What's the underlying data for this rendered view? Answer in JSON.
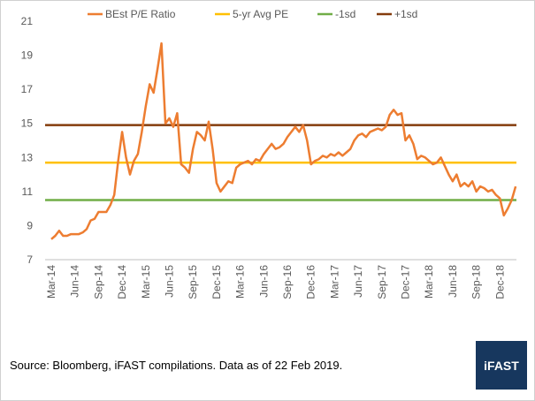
{
  "chart_data": {
    "type": "line",
    "categories": [
      "Mar-14",
      null,
      null,
      null,
      null,
      null,
      "Jun-14",
      null,
      null,
      null,
      null,
      null,
      "Sep-14",
      null,
      null,
      null,
      null,
      null,
      "Dec-14",
      null,
      null,
      null,
      null,
      null,
      "Mar-15",
      null,
      null,
      null,
      null,
      null,
      "Jun-15",
      null,
      null,
      null,
      null,
      null,
      "Sep-15",
      null,
      null,
      null,
      null,
      null,
      "Dec-15",
      null,
      null,
      null,
      null,
      null,
      "Mar-16",
      null,
      null,
      null,
      null,
      null,
      "Jun-16",
      null,
      null,
      null,
      null,
      null,
      "Sep-16",
      null,
      null,
      null,
      null,
      null,
      "Dec-16",
      null,
      null,
      null,
      null,
      null,
      "Mar-17",
      null,
      null,
      null,
      null,
      null,
      "Jun-17",
      null,
      null,
      null,
      null,
      null,
      "Sep-17",
      null,
      null,
      null,
      null,
      null,
      "Dec-17",
      null,
      null,
      null,
      null,
      null,
      "Mar-18",
      null,
      null,
      null,
      null,
      null,
      "Jun-18",
      null,
      null,
      null,
      null,
      null,
      "Sep-18",
      null,
      null,
      null,
      null,
      null,
      "Dec-18",
      null,
      null,
      null,
      null
    ],
    "series": [
      {
        "name": "BEst P/E Ratio",
        "color": "#ed7d31",
        "values": [
          8.2,
          8.4,
          8.7,
          8.4,
          8.4,
          8.5,
          8.5,
          8.5,
          8.6,
          8.8,
          9.3,
          9.4,
          9.8,
          9.8,
          9.8,
          10.2,
          10.8,
          12.8,
          14.5,
          13.0,
          12.0,
          12.8,
          13.2,
          14.5,
          16.0,
          17.3,
          16.8,
          18.2,
          19.7,
          15.0,
          15.3,
          14.8,
          15.6,
          12.6,
          12.4,
          12.1,
          13.5,
          14.5,
          14.3,
          14.0,
          15.1,
          13.5,
          11.5,
          11.0,
          11.3,
          11.6,
          11.5,
          12.4,
          12.6,
          12.7,
          12.8,
          12.6,
          12.9,
          12.8,
          13.2,
          13.5,
          13.8,
          13.5,
          13.6,
          13.8,
          14.2,
          14.5,
          14.8,
          14.5,
          14.9,
          14.0,
          12.6,
          12.8,
          12.9,
          13.1,
          13.0,
          13.2,
          13.1,
          13.3,
          13.1,
          13.3,
          13.5,
          14.0,
          14.3,
          14.4,
          14.2,
          14.5,
          14.6,
          14.7,
          14.6,
          14.8,
          15.5,
          15.8,
          15.5,
          15.6,
          14.0,
          14.3,
          13.8,
          12.9,
          13.1,
          13.0,
          12.8,
          12.6,
          12.7,
          13.0,
          12.5,
          12.0,
          11.6,
          12.0,
          11.3,
          11.5,
          11.3,
          11.6,
          11.0,
          11.3,
          11.2,
          11.0,
          11.1,
          10.8,
          10.6,
          9.6,
          10.0,
          10.5,
          11.3
        ]
      }
    ],
    "reference_lines": [
      {
        "name": "5-yr Avg PE",
        "color": "#ffc000",
        "value": 12.7
      },
      {
        "name": "-1sd",
        "color": "#70ad47",
        "value": 10.5
      },
      {
        "name": "+1sd",
        "color": "#843c0c",
        "value": 14.9
      }
    ],
    "ylim": [
      7,
      21
    ],
    "yticks": [
      7,
      9,
      11,
      13,
      15,
      17,
      19,
      21
    ],
    "grid": false,
    "legend": "top",
    "source": "Source: Bloomberg, iFAST compilations. Data as of 22 Feb 2019.",
    "logo": "iFAST"
  }
}
